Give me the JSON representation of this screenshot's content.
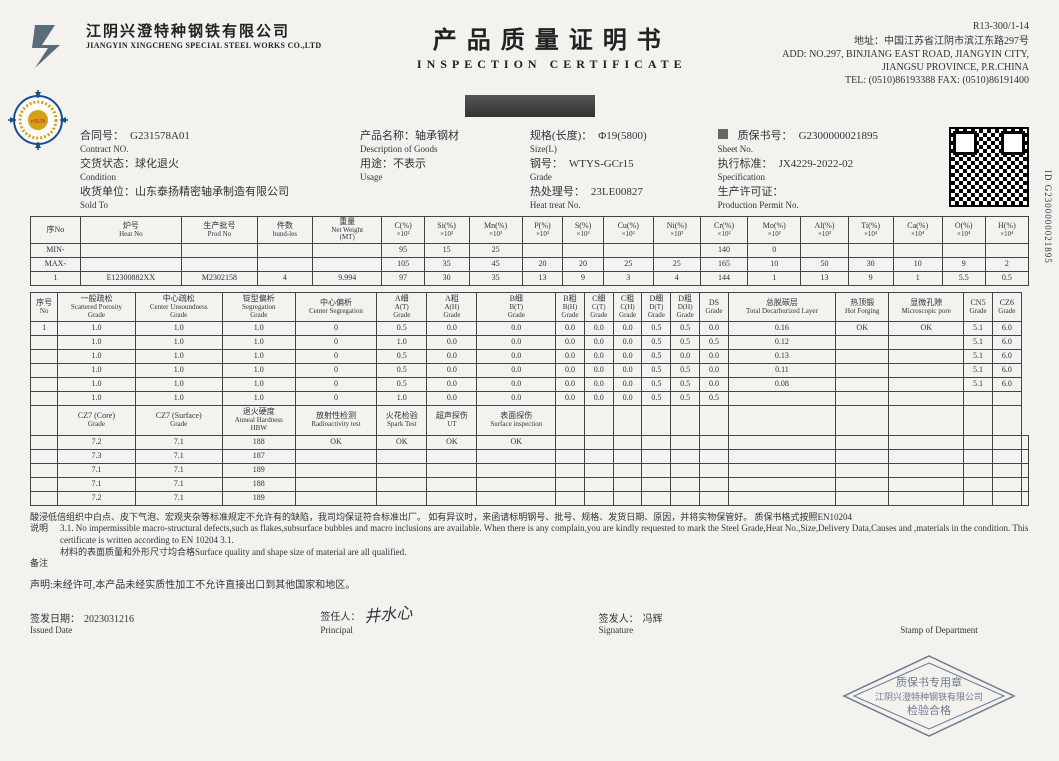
{
  "header": {
    "company_cn": "江阴兴澄特种钢铁有限公司",
    "company_en": "JIANGYIN XINGCHENG SPECIAL STEEL WORKS CO.,LTD",
    "title_cn": "产品质量证明书",
    "title_en": "INSPECTION CERTIFICATE",
    "doc_no": "R13-300/1-14",
    "addr_cn": "地址：中国江苏省江阴市滨江东路297号",
    "addr_en1": "ADD: NO.297, BINJIANG EAST ROAD, JIANGYIN CITY,",
    "addr_en2": "JIANGSU PROVINCE, P.R.CHINA",
    "tel": "TEL: (0510)86193388 FAX: (0510)86191400"
  },
  "meta": {
    "contract_cn": "合同号：",
    "contract_en": "Contract NO.",
    "contract_v": "G231578A01",
    "cond_cn": "交货状态：球化退火",
    "cond_en": "Condition",
    "sold_cn": "收货单位：山东泰扬精密轴承制造有限公司",
    "sold_en": "Sold To",
    "desc_cn": "产品名称：轴承钢材",
    "desc_en": "Description of Goods",
    "usage_cn": "用途：不表示",
    "usage_en": "Usage",
    "size_cn": "规格(长度)：",
    "size_en": "Size(L)",
    "size_v": "Φ19(5800)",
    "grade_cn": "钢号：",
    "grade_en": "Grade",
    "grade_v": "WTYS-GCr15",
    "heat_cn": "热处理号：",
    "heat_en": "Heat treat No.",
    "heat_v": "23LE00827",
    "sheet_cn": "质保书号：",
    "sheet_en": "Sheet No.",
    "sheet_v": "G2300000021895",
    "spec_cn": "执行标准：",
    "spec_en": "Specification",
    "spec_v": "JX4229-2022-02",
    "permit_cn": "生产许可证：",
    "permit_en": "Production Permit No."
  },
  "side_id": "ID G2300000021895",
  "t1": {
    "headers": [
      {
        "cn": "序No"
      },
      {
        "cn": "炉号",
        "en": "Heat No"
      },
      {
        "cn": "生产批号",
        "en": "Prod No"
      },
      {
        "cn": "件数",
        "en": "bund-les"
      },
      {
        "cn": "重量",
        "en": "Net Weight",
        "unit": "(MT)"
      },
      {
        "n": "C(%)",
        "u": "×10²"
      },
      {
        "n": "Si(%)",
        "u": "×10²"
      },
      {
        "n": "Mn(%)",
        "u": "×10²"
      },
      {
        "n": "P(%)",
        "u": "×10³"
      },
      {
        "n": "S(%)",
        "u": "×10³"
      },
      {
        "n": "Cu(%)",
        "u": "×10²"
      },
      {
        "n": "Ni(%)",
        "u": "×10²"
      },
      {
        "n": "Cr(%)",
        "u": "×10²"
      },
      {
        "n": "Mo(%)",
        "u": "×10²"
      },
      {
        "n": "Al(%)",
        "u": "×10³"
      },
      {
        "n": "Ti(%)",
        "u": "×10⁴"
      },
      {
        "n": "Ca(%)",
        "u": "×10⁴"
      },
      {
        "n": "O(%)",
        "u": "×10⁴"
      },
      {
        "n": "H(%)",
        "u": "×10⁴"
      }
    ],
    "min": [
      "MIN-",
      "",
      "",
      "",
      "",
      "95",
      "15",
      "25",
      "",
      "",
      "",
      "",
      "140",
      "0",
      "",
      "",
      "",
      "",
      ""
    ],
    "max": [
      "MAX-",
      "",
      "",
      "",
      "",
      "105",
      "35",
      "45",
      "20",
      "20",
      "25",
      "25",
      "165",
      "10",
      "50",
      "30",
      "10",
      "9",
      "2"
    ],
    "row": [
      "1",
      "E12300882XX",
      "M2302158",
      "4",
      "9.994",
      "97",
      "30",
      "35",
      "13",
      "9",
      "3",
      "4",
      "144",
      "1",
      "13",
      "9",
      "1",
      "5.5",
      "0.5"
    ]
  },
  "t2": {
    "h1": [
      {
        "cn": "序号",
        "en": "No"
      },
      {
        "cn": "一般疏松",
        "en": "Scattered Porosity",
        "g": "Grade"
      },
      {
        "cn": "中心疏松",
        "en": "Center Unsoundness",
        "g": "Grade"
      },
      {
        "cn": "锭型偏析",
        "en": "Segregation",
        "g": "Grade"
      },
      {
        "cn": "中心偏析",
        "en": "Center Segregation"
      },
      {
        "cn": "A细",
        "en": "A(T)",
        "g": "Grade"
      },
      {
        "cn": "A粗",
        "en": "A(H)",
        "g": "Grade"
      },
      {
        "cn": "B细",
        "en": "B(T)",
        "g": "Grade"
      },
      {
        "cn": "B粗",
        "en": "B(H)",
        "g": "Grade"
      },
      {
        "cn": "C细",
        "en": "C(T)",
        "g": "Grade"
      },
      {
        "cn": "C粗",
        "en": "C(H)",
        "g": "Grade"
      },
      {
        "cn": "D细",
        "en": "D(T)",
        "g": "Grade"
      },
      {
        "cn": "D粗",
        "en": "D(H)",
        "g": "Grade"
      },
      {
        "cn": "DS",
        "g": "Grade"
      },
      {
        "cn": "总脱碳层",
        "en": "Total Decarburized Layer"
      },
      {
        "cn": "热顶锻",
        "en": "Hot Forging"
      },
      {
        "cn": "显微孔隙",
        "en": "Microscopic pore"
      },
      {
        "cn": "CN5",
        "g": "Grade"
      },
      {
        "cn": "CZ6",
        "g": "Grade"
      }
    ],
    "rows1": [
      [
        "1",
        "1.0",
        "1.0",
        "1.0",
        "0",
        "0.5",
        "0.0",
        "0.0",
        "0.0",
        "0.0",
        "0.0",
        "0.5",
        "0.5",
        "0.0",
        "0.16",
        "OK",
        "OK",
        "5.1",
        "6.0"
      ],
      [
        "",
        "1.0",
        "1.0",
        "1.0",
        "0",
        "1.0",
        "0.0",
        "0.0",
        "0.0",
        "0.0",
        "0.0",
        "0.5",
        "0.5",
        "0.5",
        "0.12",
        "",
        "",
        "5.1",
        "6.0"
      ],
      [
        "",
        "1.0",
        "1.0",
        "1.0",
        "0",
        "0.5",
        "0.0",
        "0.0",
        "0.0",
        "0.0",
        "0.0",
        "0.5",
        "0.0",
        "0.0",
        "0.13",
        "",
        "",
        "5.1",
        "6.0"
      ],
      [
        "",
        "1.0",
        "1.0",
        "1.0",
        "0",
        "0.5",
        "0.0",
        "0.0",
        "0.0",
        "0.0",
        "0.0",
        "0.5",
        "0.5",
        "0.0",
        "0.11",
        "",
        "",
        "5.1",
        "6.0"
      ],
      [
        "",
        "1.0",
        "1.0",
        "1.0",
        "0",
        "0.5",
        "0.0",
        "0.0",
        "0.0",
        "0.0",
        "0.0",
        "0.5",
        "0.5",
        "0.0",
        "0.08",
        "",
        "",
        "5.1",
        "6.0"
      ],
      [
        "",
        "1.0",
        "1.0",
        "1.0",
        "0",
        "1.0",
        "0.0",
        "0.0",
        "0.0",
        "0.0",
        "0.0",
        "0.5",
        "0.5",
        "0.5",
        "",
        "",
        "",
        "",
        ""
      ]
    ],
    "h2": [
      {
        "cn": "CZ7 (Core)",
        "g": "Grade"
      },
      {
        "cn": "CZ7 (Surface)",
        "g": "Grade"
      },
      {
        "cn": "退火硬度",
        "en": "Anneal Hardness",
        "g": "HBW"
      },
      {
        "cn": "放射性检测",
        "en": "Radioactivity test"
      },
      {
        "cn": "火花检验",
        "en": "Spark Test"
      },
      {
        "cn": "超声探伤",
        "en": "UT"
      },
      {
        "cn": "表面探伤",
        "en": "Surface inspection"
      }
    ],
    "rows2": [
      [
        "7.2",
        "7.1",
        "188",
        "OK",
        "OK",
        "OK",
        "OK",
        "",
        "",
        "",
        "",
        "",
        "",
        "",
        "",
        "",
        "",
        "",
        ""
      ],
      [
        "7.3",
        "7.1",
        "187",
        "",
        "",
        "",
        "",
        "",
        "",
        "",
        "",
        "",
        "",
        "",
        "",
        "",
        "",
        "",
        ""
      ],
      [
        "7.1",
        "7.1",
        "189",
        "",
        "",
        "",
        "",
        "",
        "",
        "",
        "",
        "",
        "",
        "",
        "",
        "",
        "",
        "",
        ""
      ],
      [
        "7.1",
        "7.1",
        "188",
        "",
        "",
        "",
        "",
        "",
        "",
        "",
        "",
        "",
        "",
        "",
        "",
        "",
        "",
        "",
        ""
      ],
      [
        "7.2",
        "7.1",
        "189",
        "",
        "",
        "",
        "",
        "",
        "",
        "",
        "",
        "",
        "",
        "",
        "",
        "",
        "",
        "",
        ""
      ]
    ]
  },
  "notes": {
    "l1": "酸浸低倍组织中白点、皮下气泡、宏观夹杂等标准规定不允许有的缺陷，我司均保证符合标准出厂。     如有异议时，来函请标明钢号、批号、规格、发货日期、原因，并将实物保管好。     质保书格式按照EN10204",
    "l2_label": "说明",
    "l2": "3.1. No impermissible macro-structural defects,such as flakes,subsurface bubbles and macro inclusions are available. When there is any complain,you are kindly requested to mark the Steel Grade,Heat No.,Size,Delivery Data,Causes and ,materials in the condition. This certificate is written according to EN 10204 3.1.",
    "l3": "材料的表面质量和外形尺寸均合格Surface quality and shape size of material are all qualified.",
    "remark": "备注"
  },
  "sig": {
    "decl": "声明:未经许可,本产品未经实质性加工不允许直接出口到其他国家和地区。",
    "date_cn": "签发日期：",
    "date_en": "Issued Date",
    "date_v": "2023031216",
    "prin_cn": "签任人：",
    "prin_en": "Principal",
    "prin_hand": "井水心",
    "sign_cn": "签发人：",
    "sign_en": "Signature",
    "sign_v": "冯辉",
    "stamp_cn": "Stamp of Department",
    "stamp_t1": "质保书专用章",
    "stamp_t2": "江阴兴澄特种钢铁有限公司",
    "stamp_t3": "检验合格"
  },
  "colors": {
    "border": "#444",
    "text": "#333",
    "stamp": "#6b7a8f"
  }
}
